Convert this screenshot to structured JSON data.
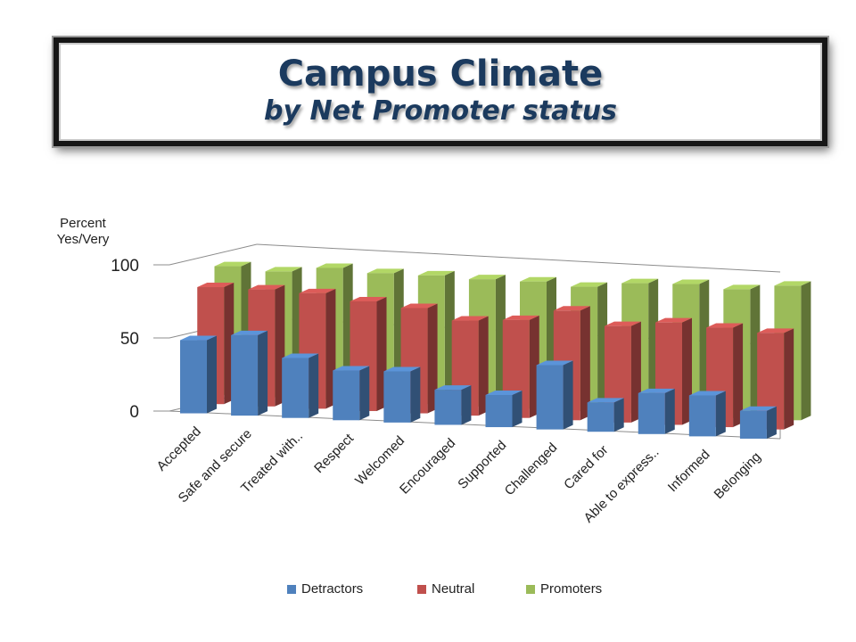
{
  "title": "Campus Climate",
  "subtitle": "by Net Promoter status",
  "colors": {
    "detractors": "#4f81bd",
    "neutral": "#c0504d",
    "promoters": "#9bbb59"
  },
  "chart_data": {
    "type": "bar",
    "title": "Campus Climate",
    "subtitle": "by Net Promoter status",
    "ylabel": "Percent Yes/Very",
    "ylim": [
      0,
      100
    ],
    "yticks": [
      0,
      50,
      100
    ],
    "grid": true,
    "legend_position": "bottom",
    "categories": [
      "Accepted",
      "Safe and secure",
      "Treated with..",
      "Respect",
      "Welcomed",
      "Encouraged",
      "Supported",
      "Challenged",
      "Cared for",
      "Able to express..",
      "Informed",
      "Belonging"
    ],
    "series": [
      {
        "name": "Detractors",
        "values": [
          50,
          55,
          41,
          34,
          35,
          24,
          22,
          44,
          20,
          28,
          28,
          19
        ]
      },
      {
        "name": "Neutral",
        "values": [
          80,
          80,
          79,
          75,
          72,
          65,
          67,
          75,
          66,
          70,
          68,
          66
        ]
      },
      {
        "name": "Promoters",
        "values": [
          88,
          86,
          90,
          88,
          88,
          87,
          87,
          85,
          89,
          90,
          88,
          92
        ]
      }
    ]
  }
}
